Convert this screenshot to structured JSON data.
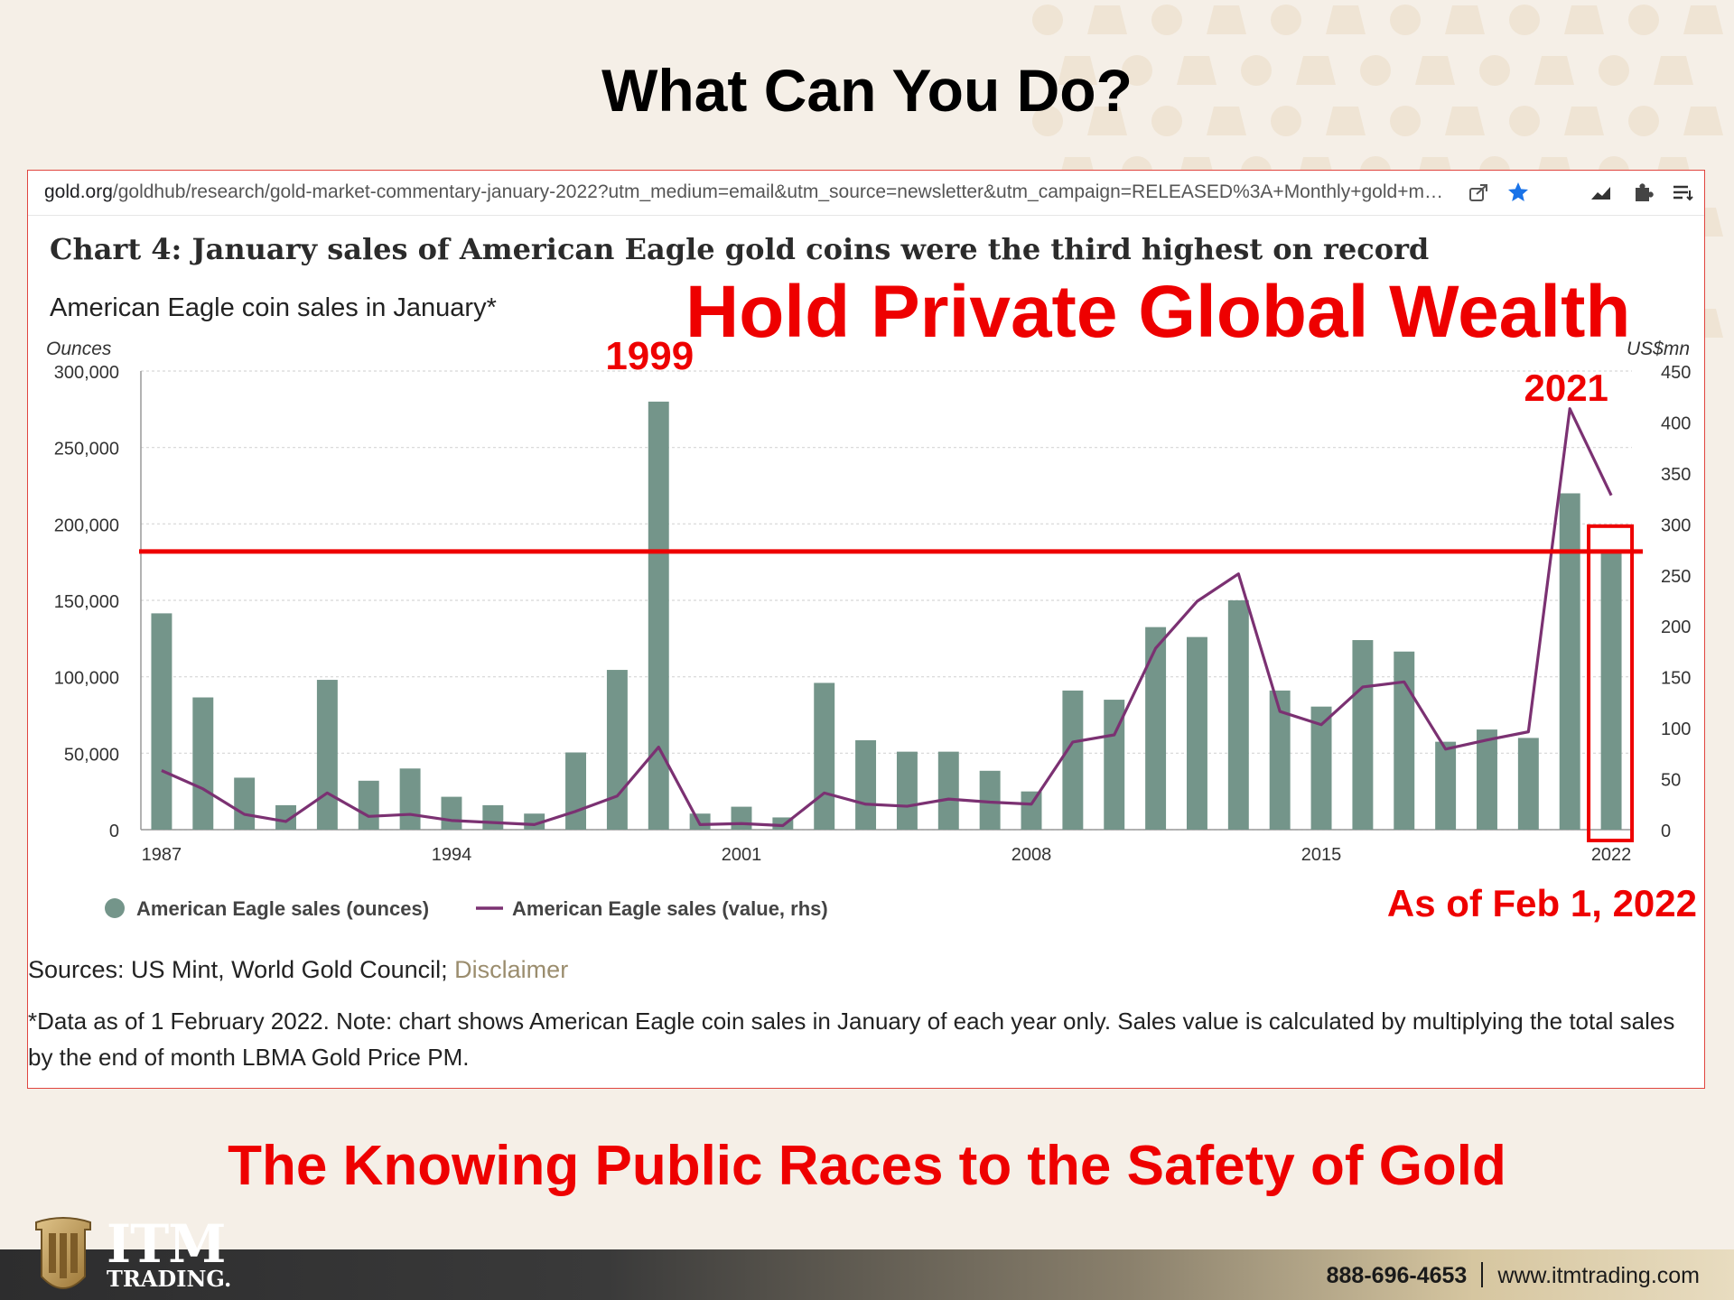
{
  "slide": {
    "title": "What Can You Do?",
    "tagline": "The Knowing Public Races to the Safety of Gold"
  },
  "browser": {
    "url_domain": "gold.org",
    "url_path": "/goldhub/research/gold-market-commentary-january-2022?utm_medium=email&utm_source=newsletter&utm_campaign=RELEASED%3A+Monthly+gold+marke...",
    "toolbar_icons": [
      "share-icon",
      "bookmark-star-icon",
      "stats-icon",
      "extensions-icon",
      "reading-list-icon",
      "profile-avatar"
    ]
  },
  "overlay": {
    "headline": "Hold Private Global Wealth",
    "label_1999": "1999",
    "label_2021": "2021",
    "as_of": "As of Feb 1, 2022",
    "line_color": "#ee0000"
  },
  "chart_data": {
    "type": "bar",
    "title": "Chart 4: January sales of American Eagle gold coins were the third highest on record",
    "subtitle": "American Eagle coin sales in January*",
    "ylabel_left": "Ounces",
    "ylabel_right": "US$mn",
    "ylim_left": [
      0,
      300000
    ],
    "ylim_right": [
      0,
      450
    ],
    "yticks_left": [
      "0",
      "50,000",
      "100,000",
      "150,000",
      "200,000",
      "250,000",
      "300,000"
    ],
    "yticks_right": [
      "0",
      "50",
      "100",
      "150",
      "200",
      "250",
      "300",
      "350",
      "400",
      "450"
    ],
    "x": [
      1987,
      1988,
      1989,
      1990,
      1991,
      1992,
      1993,
      1994,
      1995,
      1996,
      1997,
      1998,
      1999,
      2000,
      2001,
      2002,
      2003,
      2004,
      2005,
      2006,
      2007,
      2008,
      2009,
      2010,
      2011,
      2012,
      2013,
      2014,
      2015,
      2016,
      2017,
      2018,
      2019,
      2020,
      2021,
      2022
    ],
    "xtick_labels": [
      "1987",
      "1994",
      "2001",
      "2008",
      "2015",
      "2022"
    ],
    "series": [
      {
        "name": "American Eagle sales (ounces)",
        "type": "bar",
        "axis": "left",
        "color": "#74958a",
        "values": [
          141500,
          86500,
          34000,
          16000,
          98000,
          32000,
          40000,
          21500,
          16000,
          10500,
          50500,
          104500,
          280000,
          10500,
          15000,
          8000,
          96000,
          58500,
          51000,
          51000,
          38500,
          25000,
          91000,
          85000,
          132500,
          126000,
          150000,
          91000,
          80500,
          124000,
          116500,
          57500,
          65500,
          60000,
          220000,
          182500
        ]
      },
      {
        "name": "American Eagle sales (value, rhs)",
        "type": "line",
        "axis": "right",
        "color": "#7b3172",
        "values": [
          58,
          40,
          15,
          8,
          36,
          13,
          15,
          9,
          7,
          5,
          18,
          33,
          81,
          5,
          6,
          4,
          36,
          25,
          23,
          30,
          27,
          25,
          86,
          93,
          178,
          224,
          251,
          116,
          103,
          140,
          145,
          79,
          88,
          96,
          413,
          328
        ]
      }
    ],
    "reference_line": {
      "value_left": 182000
    },
    "highlight_box": {
      "year": 2022
    },
    "legend_position": "bottom-left",
    "grid": true
  },
  "sources": {
    "text": "Sources: US Mint, World Gold Council; ",
    "link": "Disclaimer"
  },
  "note": "*Data as of 1 February 2022. Note: chart shows American Eagle coin sales in January of each year only. Sales value is calculated by multiplying the total sales by the end of month LBMA Gold Price PM.",
  "footer": {
    "logo_name": "ITM",
    "logo_sub": "TRADING.",
    "phone": "888-696-4653",
    "website": "www.itmtrading.com"
  },
  "colors": {
    "background": "#f5efe7",
    "pattern": "#efe4d4",
    "accent_red": "#ee0000",
    "bar_green": "#74958a",
    "line_purple": "#7b3172",
    "gold": "#b8955a"
  }
}
